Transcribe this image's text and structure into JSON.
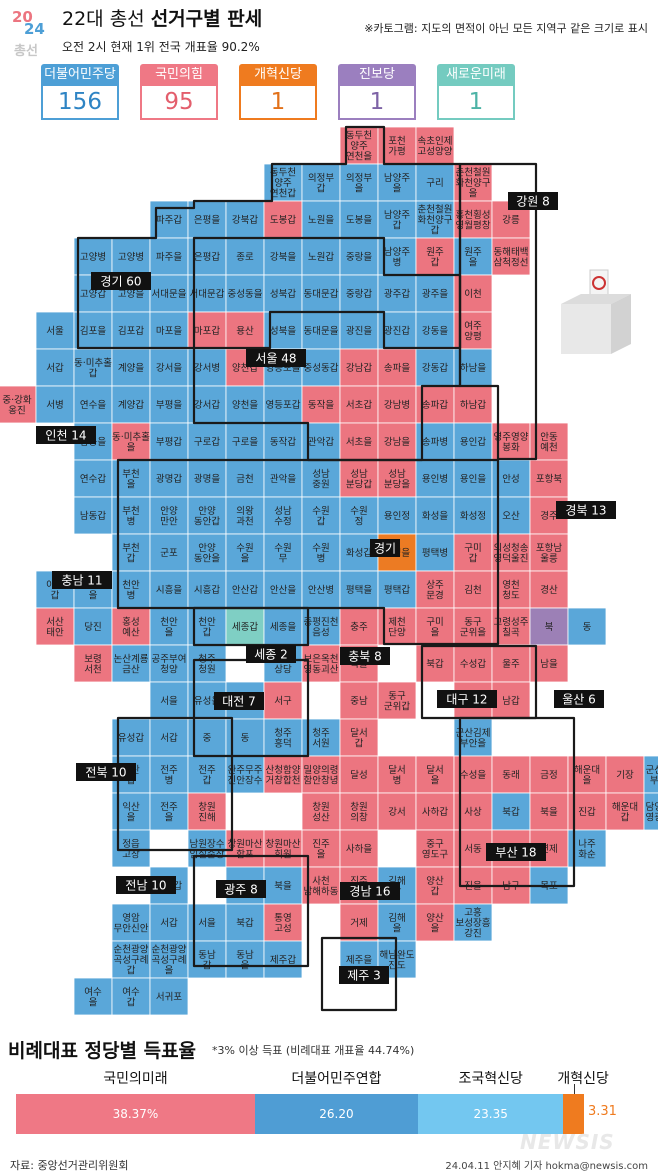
{
  "logo": {
    "top": "20",
    "bottom": "24",
    "word": "총선"
  },
  "title": {
    "prefix": "22대 총선 ",
    "bold": "선거구별 판세"
  },
  "subtitle": "오전 2시 현재 1위 전국 개표율 90.2%",
  "note": "※카토그램: 지도의 면적이 아닌 모든 지역구 같은 크기로 표시",
  "colors": {
    "blue": "#5aa7d9",
    "red": "#ec7580",
    "orange": "#ec7b23",
    "purple": "#9c80b6",
    "mint": "#7fcfc4",
    "border": "#1a1a1a"
  },
  "parties": [
    {
      "name": "더불어민주당",
      "seats": "156",
      "color": "#4d9fd6",
      "text": "#2e84c4"
    },
    {
      "name": "국민의힘",
      "seats": "95",
      "color": "#ef7885",
      "text": "#e35e6c"
    },
    {
      "name": "개혁신당",
      "seats": "1",
      "color": "#ef7b1f",
      "text": "#e2711a"
    },
    {
      "name": "진보당",
      "seats": "1",
      "color": "#9b7fbf",
      "text": "#7e63a6"
    },
    {
      "name": "새로운미래",
      "seats": "1",
      "color": "#74cbc0",
      "text": "#4db3a6"
    }
  ],
  "regions": [
    {
      "name": "경기 60"
    },
    {
      "name": "강원 8"
    },
    {
      "name": "인천 14"
    },
    {
      "name": "서울 48"
    },
    {
      "name": "경북 13"
    },
    {
      "name": "경기"
    },
    {
      "name": "충남 11"
    },
    {
      "name": "세종 2"
    },
    {
      "name": "충북 8"
    },
    {
      "name": "대전 7"
    },
    {
      "name": "대구 12"
    },
    {
      "name": "울산 6"
    },
    {
      "name": "전북 10"
    },
    {
      "name": "부산 18"
    },
    {
      "name": "전남 10"
    },
    {
      "name": "광주 8"
    },
    {
      "name": "경남 16"
    },
    {
      "name": "제주 3"
    }
  ],
  "districts": [
    {
      "l": "동두천\n양주\n연천을",
      "p": "R"
    },
    {
      "l": "포천\n가평",
      "p": "R"
    },
    {
      "l": "속초인제\n고성양양",
      "p": "R"
    },
    {
      "l": "동두천\n양주\n연천갑",
      "p": "B"
    },
    {
      "l": "의정부\n갑",
      "p": "B"
    },
    {
      "l": "의정부\n을",
      "p": "B"
    },
    {
      "l": "남양주\n을",
      "p": "B"
    },
    {
      "l": "구리",
      "p": "B"
    },
    {
      "l": "춘천철원\n화천양구\n을",
      "p": "R"
    },
    {
      "l": "파주갑",
      "p": "B"
    },
    {
      "l": "은평을",
      "p": "B"
    },
    {
      "l": "강북갑",
      "p": "B"
    },
    {
      "l": "도봉갑",
      "p": "R"
    },
    {
      "l": "노원을",
      "p": "B"
    },
    {
      "l": "도봉을",
      "p": "B"
    },
    {
      "l": "남양주\n갑",
      "p": "B"
    },
    {
      "l": "춘천철원\n화천양구\n갑",
      "p": "B"
    },
    {
      "l": "홍천횡성\n영월평창",
      "p": "R"
    },
    {
      "l": "강릉",
      "p": "R"
    },
    {
      "l": "고양병",
      "p": "B"
    },
    {
      "l": "고양병",
      "p": "B"
    },
    {
      "l": "파주을",
      "p": "B"
    },
    {
      "l": "은평갑",
      "p": "B"
    },
    {
      "l": "종로",
      "p": "B"
    },
    {
      "l": "강북을",
      "p": "B"
    },
    {
      "l": "노원갑",
      "p": "B"
    },
    {
      "l": "중랑을",
      "p": "B"
    },
    {
      "l": "남양주\n병",
      "p": "B"
    },
    {
      "l": "원주\n갑",
      "p": "R"
    },
    {
      "l": "원주\n을",
      "p": "B"
    },
    {
      "l": "동해태백\n삼척정선",
      "p": "R"
    },
    {
      "l": "고양갑",
      "p": "B"
    },
    {
      "l": "고양을",
      "p": "B"
    },
    {
      "l": "서대문을",
      "p": "B"
    },
    {
      "l": "서대문갑",
      "p": "B"
    },
    {
      "l": "중성동을",
      "p": "B"
    },
    {
      "l": "성북갑",
      "p": "B"
    },
    {
      "l": "동대문갑",
      "p": "B"
    },
    {
      "l": "중랑갑",
      "p": "B"
    },
    {
      "l": "광주갑",
      "p": "B"
    },
    {
      "l": "광주을",
      "p": "B"
    },
    {
      "l": "이천",
      "p": "R"
    },
    {
      "l": "서울",
      "p": "B"
    },
    {
      "l": "김포을",
      "p": "B"
    },
    {
      "l": "김포갑",
      "p": "B"
    },
    {
      "l": "마포을",
      "p": "B"
    },
    {
      "l": "마포갑",
      "p": "R"
    },
    {
      "l": "용산",
      "p": "R"
    },
    {
      "l": "성북을",
      "p": "B"
    },
    {
      "l": "동대문을",
      "p": "B"
    },
    {
      "l": "광진을",
      "p": "B"
    },
    {
      "l": "광진갑",
      "p": "B"
    },
    {
      "l": "강동을",
      "p": "B"
    },
    {
      "l": "여주\n양평",
      "p": "R"
    },
    {
      "l": "서갑",
      "p": "B"
    },
    {
      "l": "동·미추홀\n갑",
      "p": "B"
    },
    {
      "l": "계양을",
      "p": "B"
    },
    {
      "l": "강서을",
      "p": "B"
    },
    {
      "l": "강서병",
      "p": "B"
    },
    {
      "l": "양천갑",
      "p": "R"
    },
    {
      "l": "영등포을",
      "p": "B"
    },
    {
      "l": "중성동갑",
      "p": "B"
    },
    {
      "l": "강남갑",
      "p": "R"
    },
    {
      "l": "송파을",
      "p": "R"
    },
    {
      "l": "강동갑",
      "p": "B"
    },
    {
      "l": "하남을",
      "p": "B"
    },
    {
      "l": "중·강화\n옹진",
      "p": "R"
    },
    {
      "l": "서병",
      "p": "B"
    },
    {
      "l": "연수을",
      "p": "B"
    },
    {
      "l": "계양갑",
      "p": "B"
    },
    {
      "l": "부평을",
      "p": "B"
    },
    {
      "l": "강서갑",
      "p": "B"
    },
    {
      "l": "양천을",
      "p": "B"
    },
    {
      "l": "영등포갑",
      "p": "B"
    },
    {
      "l": "동작을",
      "p": "R"
    },
    {
      "l": "서초갑",
      "p": "R"
    },
    {
      "l": "강남병",
      "p": "R"
    },
    {
      "l": "송파갑",
      "p": "R"
    },
    {
      "l": "하남갑",
      "p": "R"
    },
    {
      "l": "남동을",
      "p": "B"
    },
    {
      "l": "동·미추홀\n을",
      "p": "R"
    },
    {
      "l": "부평갑",
      "p": "B"
    },
    {
      "l": "구로갑",
      "p": "B"
    },
    {
      "l": "구로을",
      "p": "B"
    },
    {
      "l": "동작갑",
      "p": "B"
    },
    {
      "l": "관악갑",
      "p": "B"
    },
    {
      "l": "서초을",
      "p": "R"
    },
    {
      "l": "강남을",
      "p": "R"
    },
    {
      "l": "송파병",
      "p": "B"
    },
    {
      "l": "용인갑",
      "p": "B"
    },
    {
      "l": "영주영양\n봉화",
      "p": "R"
    },
    {
      "l": "안동\n예천",
      "p": "R"
    },
    {
      "l": "연수갑",
      "p": "B"
    },
    {
      "l": "부천\n을",
      "p": "B"
    },
    {
      "l": "광명갑",
      "p": "B"
    },
    {
      "l": "광명을",
      "p": "B"
    },
    {
      "l": "금천",
      "p": "B"
    },
    {
      "l": "관악을",
      "p": "B"
    },
    {
      "l": "성남\n중원",
      "p": "B"
    },
    {
      "l": "성남\n분당갑",
      "p": "R"
    },
    {
      "l": "성남\n분당을",
      "p": "R"
    },
    {
      "l": "용인병",
      "p": "B"
    },
    {
      "l": "용인을",
      "p": "B"
    },
    {
      "l": "안성",
      "p": "B"
    },
    {
      "l": "포항북",
      "p": "R"
    },
    {
      "l": "남동갑",
      "p": "B"
    },
    {
      "l": "부천\n병",
      "p": "B"
    },
    {
      "l": "안양\n만안",
      "p": "B"
    },
    {
      "l": "안양\n동안갑",
      "p": "B"
    },
    {
      "l": "의왕\n과천",
      "p": "B"
    },
    {
      "l": "성남\n수정",
      "p": "B"
    },
    {
      "l": "수원\n갑",
      "p": "B"
    },
    {
      "l": "수원\n정",
      "p": "B"
    },
    {
      "l": "용인정",
      "p": "B"
    },
    {
      "l": "화성을",
      "p": "B"
    },
    {
      "l": "화성정",
      "p": "B"
    },
    {
      "l": "오산",
      "p": "B"
    },
    {
      "l": "경주",
      "p": "R"
    },
    {
      "l": "부천\n갑",
      "p": "B"
    },
    {
      "l": "군포",
      "p": "B"
    },
    {
      "l": "안양\n동안을",
      "p": "B"
    },
    {
      "l": "수원\n을",
      "p": "B"
    },
    {
      "l": "수원\n무",
      "p": "B"
    },
    {
      "l": "수원\n병",
      "p": "B"
    },
    {
      "l": "화성갑",
      "p": "B"
    },
    {
      "l": "화성을",
      "p": "O"
    },
    {
      "l": "평택병",
      "p": "B"
    },
    {
      "l": "구미\n갑",
      "p": "R"
    },
    {
      "l": "의성청송\n영덕울진",
      "p": "R"
    },
    {
      "l": "포항남\n울릉",
      "p": "R"
    },
    {
      "l": "아산\n갑",
      "p": "B"
    },
    {
      "l": "아산\n을",
      "p": "B"
    },
    {
      "l": "천안\n병",
      "p": "B"
    },
    {
      "l": "시흥을",
      "p": "B"
    },
    {
      "l": "시흥갑",
      "p": "B"
    },
    {
      "l": "안산갑",
      "p": "B"
    },
    {
      "l": "안산을",
      "p": "B"
    },
    {
      "l": "안산병",
      "p": "B"
    },
    {
      "l": "평택을",
      "p": "B"
    },
    {
      "l": "평택갑",
      "p": "B"
    },
    {
      "l": "상주\n문경",
      "p": "R"
    },
    {
      "l": "김천",
      "p": "R"
    },
    {
      "l": "영천\n청도",
      "p": "R"
    },
    {
      "l": "경산",
      "p": "R"
    },
    {
      "l": "서산\n태안",
      "p": "R"
    },
    {
      "l": "당진",
      "p": "B"
    },
    {
      "l": "홍성\n예산",
      "p": "R"
    },
    {
      "l": "천안\n을",
      "p": "B"
    },
    {
      "l": "천안\n갑",
      "p": "B"
    },
    {
      "l": "세종갑",
      "p": "M"
    },
    {
      "l": "세종을",
      "p": "B"
    },
    {
      "l": "증평진천\n음성",
      "p": "B"
    },
    {
      "l": "충주",
      "p": "R"
    },
    {
      "l": "제천\n단양",
      "p": "R"
    },
    {
      "l": "구미\n을",
      "p": "R"
    },
    {
      "l": "동구\n군위을",
      "p": "R"
    },
    {
      "l": "고령성주\n칠곡",
      "p": "R"
    },
    {
      "l": "북",
      "p": "P"
    },
    {
      "l": "동",
      "p": "B"
    },
    {
      "l": "보령\n서천",
      "p": "R"
    },
    {
      "l": "논산계룡\n금산",
      "p": "B"
    },
    {
      "l": "공주부여\n청양",
      "p": "B"
    },
    {
      "l": "청주\n청원",
      "p": "B"
    },
    {
      "l": "청주\n상당",
      "p": "B"
    },
    {
      "l": "보은옥천\n영동괴산",
      "p": "R"
    },
    {
      "l": "북을",
      "p": "R"
    },
    {
      "l": "북갑",
      "p": "R"
    },
    {
      "l": "수성갑",
      "p": "R"
    },
    {
      "l": "울주",
      "p": "R"
    },
    {
      "l": "남을",
      "p": "R"
    },
    {
      "l": "서을",
      "p": "B"
    },
    {
      "l": "유성을",
      "p": "B"
    },
    {
      "l": "대덕",
      "p": "B"
    },
    {
      "l": "서구",
      "p": "R"
    },
    {
      "l": "중남",
      "p": "R"
    },
    {
      "l": "동구\n군위갑",
      "p": "R"
    },
    {
      "l": "중",
      "p": "R"
    },
    {
      "l": "남갑",
      "p": "R"
    },
    {
      "l": "유성갑",
      "p": "B"
    },
    {
      "l": "서갑",
      "p": "B"
    },
    {
      "l": "중",
      "p": "B"
    },
    {
      "l": "동",
      "p": "B"
    },
    {
      "l": "청주\n흥덕",
      "p": "B"
    },
    {
      "l": "청주\n서원",
      "p": "B"
    },
    {
      "l": "달서\n갑",
      "p": "R"
    },
    {
      "l": "군산김제\n부안을",
      "p": "B"
    },
    {
      "l": "익산\n갑",
      "p": "B"
    },
    {
      "l": "전주\n병",
      "p": "B"
    },
    {
      "l": "전주\n갑",
      "p": "B"
    },
    {
      "l": "완주무주\n진안장수",
      "p": "B"
    },
    {
      "l": "산청함양\n거창합천",
      "p": "R"
    },
    {
      "l": "밀양의령\n함안창녕",
      "p": "R"
    },
    {
      "l": "달성",
      "p": "R"
    },
    {
      "l": "달서\n병",
      "p": "R"
    },
    {
      "l": "달서\n을",
      "p": "R"
    },
    {
      "l": "수성을",
      "p": "R"
    },
    {
      "l": "동래",
      "p": "R"
    },
    {
      "l": "금정",
      "p": "R"
    },
    {
      "l": "해운대\n을",
      "p": "R"
    },
    {
      "l": "기장",
      "p": "R"
    },
    {
      "l": "군산김제\n부안갑",
      "p": "B"
    },
    {
      "l": "익산\n을",
      "p": "B"
    },
    {
      "l": "전주\n을",
      "p": "B"
    },
    {
      "l": "창원\n진해",
      "p": "R"
    },
    {
      "l": "창원\n성산",
      "p": "R"
    },
    {
      "l": "창원\n의창",
      "p": "R"
    },
    {
      "l": "강서",
      "p": "R"
    },
    {
      "l": "사하갑",
      "p": "R"
    },
    {
      "l": "사상",
      "p": "R"
    },
    {
      "l": "북갑",
      "p": "B"
    },
    {
      "l": "북을",
      "p": "R"
    },
    {
      "l": "진갑",
      "p": "R"
    },
    {
      "l": "해운대\n갑",
      "p": "R"
    },
    {
      "l": "담양함평\n영광장성",
      "p": "B"
    },
    {
      "l": "정읍\n고창",
      "p": "B"
    },
    {
      "l": "남원장수\n임실순창",
      "p": "B"
    },
    {
      "l": "창원마산\n합포",
      "p": "R"
    },
    {
      "l": "창원마산\n회원",
      "p": "R"
    },
    {
      "l": "진주\n을",
      "p": "R"
    },
    {
      "l": "사하을",
      "p": "R"
    },
    {
      "l": "중구\n영도구",
      "p": "R"
    },
    {
      "l": "서동",
      "p": "R"
    },
    {
      "l": "수영",
      "p": "R"
    },
    {
      "l": "연제",
      "p": "R"
    },
    {
      "l": "나주\n화순",
      "p": "B"
    },
    {
      "l": "광산갑",
      "p": "B"
    },
    {
      "l": "광산을",
      "p": "B"
    },
    {
      "l": "북을",
      "p": "B"
    },
    {
      "l": "사천\n남해하동",
      "p": "R"
    },
    {
      "l": "진주\n갑",
      "p": "R"
    },
    {
      "l": "김해\n갑",
      "p": "B"
    },
    {
      "l": "양산\n갑",
      "p": "R"
    },
    {
      "l": "진을",
      "p": "R"
    },
    {
      "l": "남구",
      "p": "R"
    },
    {
      "l": "목포",
      "p": "B"
    },
    {
      "l": "영암\n무안신안",
      "p": "B"
    },
    {
      "l": "서갑",
      "p": "B"
    },
    {
      "l": "서을",
      "p": "B"
    },
    {
      "l": "북갑",
      "p": "B"
    },
    {
      "l": "통영\n고성",
      "p": "R"
    },
    {
      "l": "거제",
      "p": "R"
    },
    {
      "l": "김해\n을",
      "p": "B"
    },
    {
      "l": "양산\n을",
      "p": "R"
    },
    {
      "l": "고흥\n보성장흥\n강진",
      "p": "B"
    },
    {
      "l": "순천광양\n곡성구례\n갑",
      "p": "B"
    },
    {
      "l": "순천광양\n곡성구례\n을",
      "p": "B"
    },
    {
      "l": "동남\n갑",
      "p": "B"
    },
    {
      "l": "동남\n을",
      "p": "B"
    },
    {
      "l": "제주갑",
      "p": "B"
    },
    {
      "l": "제주을",
      "p": "B"
    },
    {
      "l": "해남완도\n진도",
      "p": "B"
    },
    {
      "l": "여수\n을",
      "p": "B"
    },
    {
      "l": "여수\n갑",
      "p": "B"
    },
    {
      "l": "서귀포",
      "p": "B"
    }
  ],
  "proportional": {
    "title": "비례대표 정당별 득표율",
    "note": "*3% 이상 득표 (비례대표 개표율 44.74%)",
    "bars": [
      {
        "name": "국민의미래",
        "value": 38.37,
        "label": "38.37%",
        "color": "#ef7885"
      },
      {
        "name": "더불어민주연합",
        "value": 26.2,
        "label": "26.20",
        "color": "#4f9dd4"
      },
      {
        "name": "조국혁신당",
        "value": 23.35,
        "label": "23.35",
        "color": "#73c7f0"
      },
      {
        "name": "개혁신당",
        "value": 3.31,
        "label": "3.31",
        "color": "#ef7b1f"
      }
    ]
  },
  "source": "자료: 중앙선거관리위원회",
  "credit": "24.04.11 안지혜 기자 hokma@newsis.com",
  "watermark": "NEWSIS"
}
